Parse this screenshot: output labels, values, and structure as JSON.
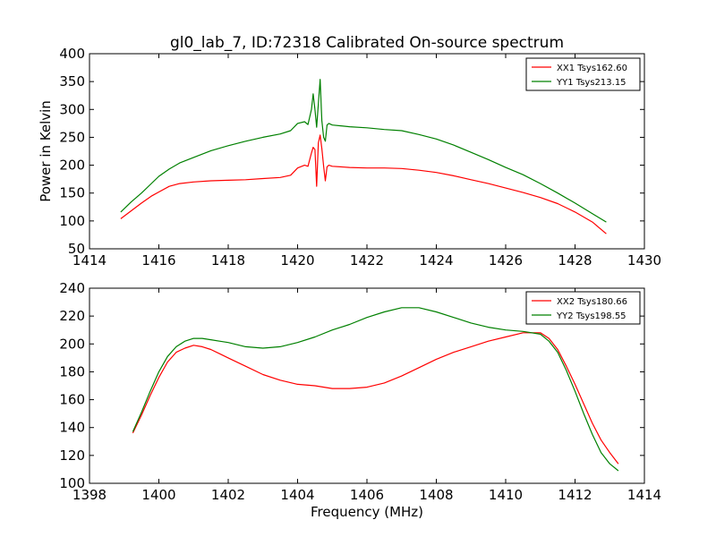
{
  "figure": {
    "title": "gl0_lab_7, ID:72318 Calibrated On-source spectrum"
  },
  "chart_data": [
    {
      "type": "line",
      "title": "gl0_lab_7, ID:72318 Calibrated On-source spectrum",
      "xlabel": "",
      "ylabel": "Power in Kelvin",
      "xlim": [
        1414,
        1430
      ],
      "ylim": [
        50,
        400
      ],
      "xticks": [
        1414,
        1416,
        1418,
        1420,
        1422,
        1424,
        1426,
        1428,
        1430
      ],
      "yticks": [
        50,
        100,
        150,
        200,
        250,
        300,
        350,
        400
      ],
      "grid": false,
      "legend_position": "top-right",
      "series": [
        {
          "name": "XX1 Tsys162.60",
          "color": "#ff0000",
          "x": [
            1414.9,
            1415.2,
            1415.5,
            1415.8,
            1416.0,
            1416.3,
            1416.6,
            1417.0,
            1417.5,
            1418.0,
            1418.5,
            1419.0,
            1419.5,
            1419.8,
            1420.0,
            1420.2,
            1420.3,
            1420.4,
            1420.45,
            1420.5,
            1420.55,
            1420.6,
            1420.65,
            1420.7,
            1420.75,
            1420.8,
            1420.85,
            1420.9,
            1421.0,
            1421.5,
            1422.0,
            1422.5,
            1423.0,
            1423.5,
            1424.0,
            1424.5,
            1425.0,
            1425.5,
            1426.0,
            1426.5,
            1427.0,
            1427.5,
            1428.0,
            1428.5,
            1428.9
          ],
          "y": [
            104,
            118,
            132,
            145,
            152,
            162,
            167,
            170,
            172,
            173,
            174,
            176,
            178,
            182,
            195,
            200,
            198,
            222,
            232,
            228,
            162,
            240,
            254,
            230,
            198,
            172,
            197,
            200,
            198,
            196,
            195,
            195,
            194,
            191,
            187,
            181,
            174,
            167,
            159,
            151,
            142,
            131,
            116,
            98,
            77
          ]
        },
        {
          "name": "YY1 Tsys213.15",
          "color": "#008000",
          "x": [
            1414.9,
            1415.2,
            1415.5,
            1415.8,
            1416.0,
            1416.3,
            1416.6,
            1417.0,
            1417.5,
            1418.0,
            1418.5,
            1419.0,
            1419.5,
            1419.8,
            1420.0,
            1420.2,
            1420.3,
            1420.4,
            1420.45,
            1420.5,
            1420.55,
            1420.6,
            1420.65,
            1420.7,
            1420.75,
            1420.8,
            1420.85,
            1420.9,
            1421.0,
            1421.5,
            1422.0,
            1422.5,
            1423.0,
            1423.5,
            1424.0,
            1424.5,
            1425.0,
            1425.5,
            1426.0,
            1426.5,
            1427.0,
            1427.5,
            1428.0,
            1428.5,
            1428.9
          ],
          "y": [
            116,
            134,
            150,
            168,
            180,
            193,
            204,
            214,
            226,
            235,
            243,
            250,
            256,
            262,
            275,
            278,
            273,
            300,
            328,
            300,
            268,
            310,
            354,
            280,
            250,
            243,
            272,
            275,
            272,
            269,
            267,
            264,
            262,
            255,
            247,
            236,
            223,
            210,
            196,
            183,
            167,
            150,
            132,
            113,
            98
          ]
        }
      ]
    },
    {
      "type": "line",
      "title": "",
      "xlabel": "Frequency (MHz)",
      "ylabel": "",
      "xlim": [
        1398,
        1414
      ],
      "ylim": [
        100,
        240
      ],
      "xticks": [
        1398,
        1400,
        1402,
        1404,
        1406,
        1408,
        1410,
        1412,
        1414
      ],
      "yticks": [
        100,
        120,
        140,
        160,
        180,
        200,
        220,
        240
      ],
      "grid": false,
      "legend_position": "top-right",
      "series": [
        {
          "name": "XX2 Tsys180.66",
          "color": "#ff0000",
          "x": [
            1399.25,
            1399.5,
            1399.75,
            1400.0,
            1400.25,
            1400.5,
            1400.75,
            1401.0,
            1401.25,
            1401.5,
            1401.75,
            1402.0,
            1402.5,
            1403.0,
            1403.5,
            1404.0,
            1404.5,
            1405.0,
            1405.5,
            1406.0,
            1406.5,
            1407.0,
            1407.5,
            1408.0,
            1408.5,
            1409.0,
            1409.5,
            1410.0,
            1410.5,
            1411.0,
            1411.25,
            1411.5,
            1411.75,
            1412.0,
            1412.25,
            1412.5,
            1412.75,
            1413.0,
            1413.25
          ],
          "y": [
            136,
            149,
            163,
            176,
            187,
            194,
            197,
            199,
            198,
            196,
            193,
            190,
            184,
            178,
            174,
            171,
            170,
            168,
            168,
            169,
            172,
            177,
            183,
            189,
            194,
            198,
            202,
            205,
            208,
            208,
            204,
            196,
            184,
            171,
            157,
            143,
            131,
            122,
            114
          ]
        },
        {
          "name": "YY2 Tsys198.55",
          "color": "#008000",
          "x": [
            1399.25,
            1399.5,
            1399.75,
            1400.0,
            1400.25,
            1400.5,
            1400.75,
            1401.0,
            1401.25,
            1401.5,
            1401.75,
            1402.0,
            1402.5,
            1403.0,
            1403.5,
            1404.0,
            1404.5,
            1405.0,
            1405.5,
            1406.0,
            1406.5,
            1407.0,
            1407.5,
            1408.0,
            1408.5,
            1409.0,
            1409.5,
            1410.0,
            1410.5,
            1411.0,
            1411.25,
            1411.5,
            1411.75,
            1412.0,
            1412.25,
            1412.5,
            1412.75,
            1413.0,
            1413.25
          ],
          "y": [
            137,
            151,
            166,
            180,
            191,
            198,
            202,
            204,
            204,
            203,
            202,
            201,
            198,
            197,
            198,
            201,
            205,
            210,
            214,
            219,
            223,
            226,
            226,
            223,
            219,
            215,
            212,
            210,
            209,
            207,
            202,
            194,
            181,
            166,
            150,
            135,
            122,
            114,
            109
          ]
        }
      ]
    }
  ]
}
